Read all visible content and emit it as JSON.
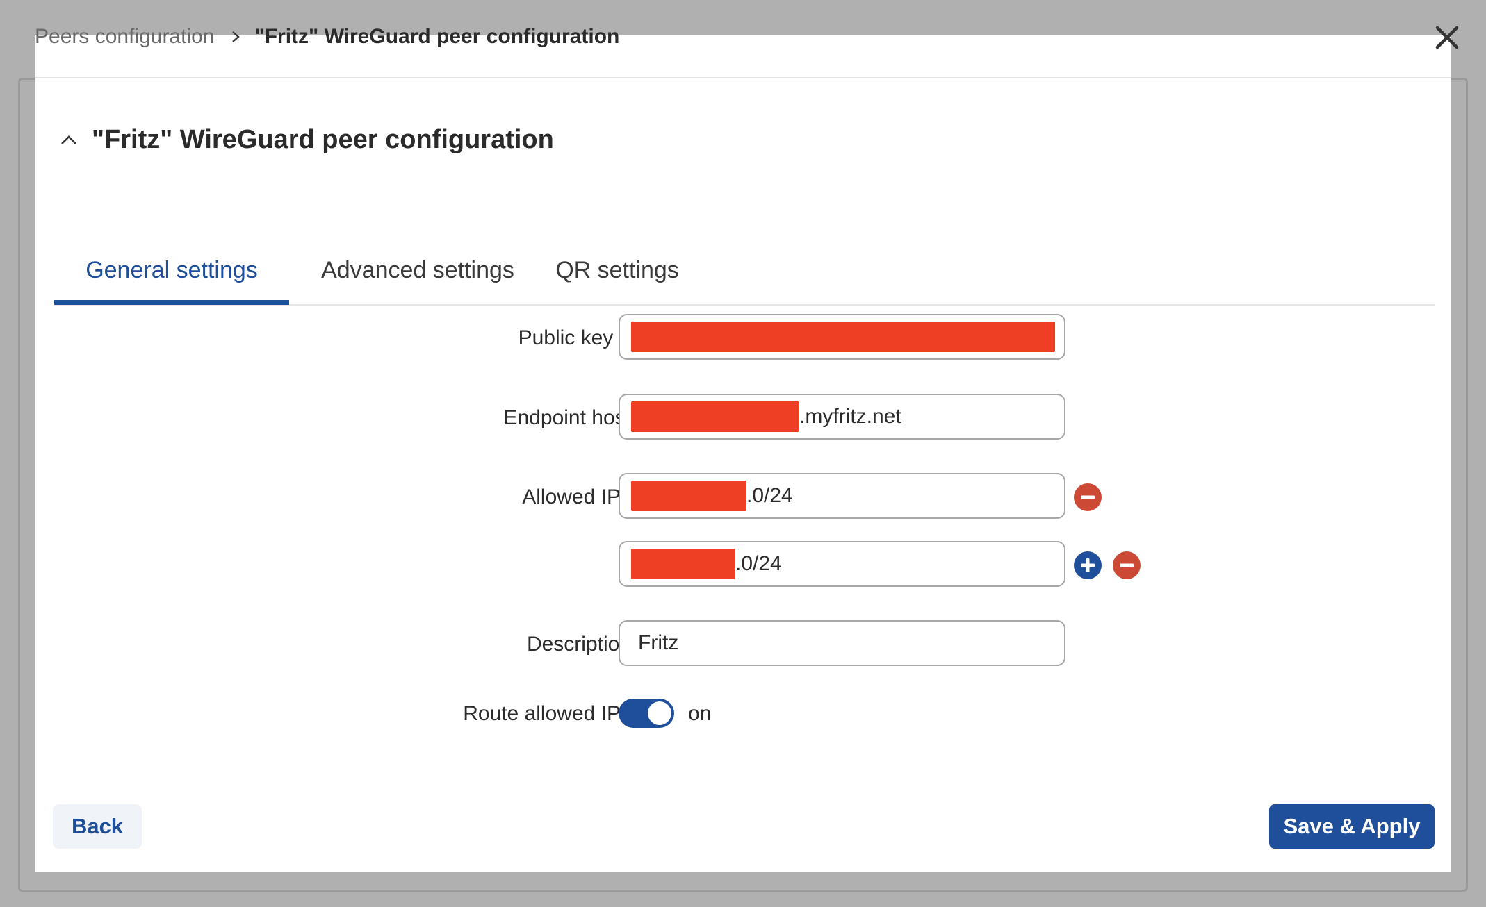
{
  "breadcrumb": {
    "parent": "Peers configuration",
    "current": "\"Fritz\" WireGuard peer configuration"
  },
  "section": {
    "title": "\"Fritz\" WireGuard peer configuration"
  },
  "tabs": [
    {
      "label": "General settings",
      "active": true
    },
    {
      "label": "Advanced settings",
      "active": false
    },
    {
      "label": "QR settings",
      "active": false
    }
  ],
  "form": {
    "public_key": {
      "label": "Public key",
      "required_mark": "*",
      "value": ""
    },
    "endpoint_host": {
      "label": "Endpoint host",
      "value_suffix": ".myfritz.net"
    },
    "allowed_ips": {
      "label": "Allowed IPs",
      "entries": [
        {
          "value_suffix": ".0/24"
        },
        {
          "value_suffix": ".0/24"
        }
      ]
    },
    "description": {
      "label": "Description",
      "value": "Fritz"
    },
    "route_allowed_ips": {
      "label": "Route allowed IPs",
      "state": "on"
    }
  },
  "footer": {
    "back_label": "Back",
    "save_label": "Save & Apply"
  },
  "colors": {
    "accent": "#1f4f9b",
    "remove": "#cc4a35",
    "redaction": "#ee3f24",
    "required": "#d4452c"
  },
  "icons": {
    "close": "close-icon",
    "breadcrumb_separator": "chevron-right-icon",
    "collapse": "chevron-up-icon",
    "add": "plus-icon",
    "remove": "minus-icon"
  }
}
